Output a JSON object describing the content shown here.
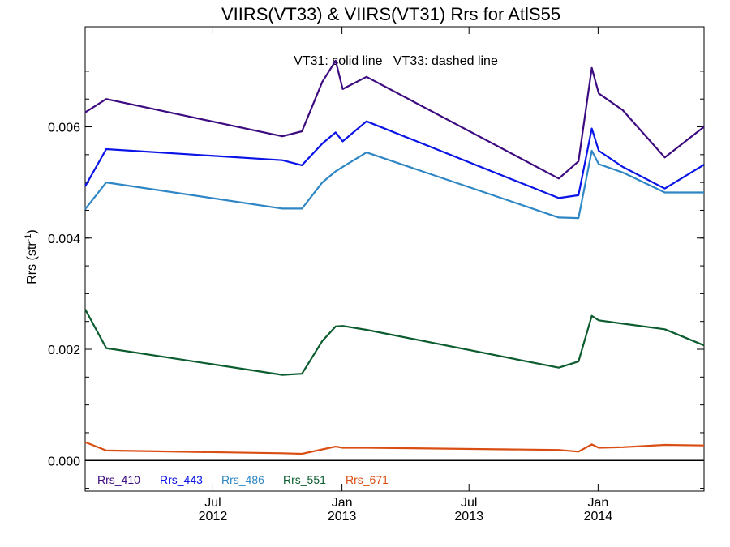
{
  "chart_data": {
    "type": "line",
    "title": "VIIRS(VT33) & VIIRS(VT31)  Rrs for AtlS55",
    "annotation": "VT31: solid line   VT33: dashed line",
    "ylabel": "Rrs (str",
    "ylabel_sup": "-1",
    "ylabel_close": ")",
    "xlabel": "",
    "xlim": [
      "2012-01-01",
      "2014-06-01"
    ],
    "ylim": [
      -0.00055,
      0.0078
    ],
    "y_ticks": [
      0.0,
      0.002,
      0.004,
      0.006
    ],
    "y_tick_labels": [
      "0.000",
      "0.002",
      "0.004",
      "0.006"
    ],
    "x_ticks": [
      {
        "date": "2012-07-01",
        "line1": "Jul",
        "line2": "2012"
      },
      {
        "date": "2013-01-01",
        "line1": "Jan",
        "line2": "2013"
      },
      {
        "date": "2013-07-01",
        "line1": "Jul",
        "line2": "2013"
      },
      {
        "date": "2014-01-01",
        "line1": "Jan",
        "line2": "2014"
      }
    ],
    "x": [
      "2012-01-01",
      "2012-01-31",
      "2012-10-08",
      "2012-11-05",
      "2012-12-04",
      "2012-12-23",
      "2013-01-02",
      "2013-02-05",
      "2013-11-06",
      "2013-12-04",
      "2013-12-23",
      "2014-01-02",
      "2014-02-05",
      "2014-04-06",
      "2014-06-01"
    ],
    "series": [
      {
        "name": "Rrs_410",
        "color": "#3d0b80",
        "values": [
          0.00626,
          0.0065,
          0.00583,
          0.00592,
          0.00681,
          0.00719,
          0.00668,
          0.0069,
          0.00507,
          0.00538,
          0.00706,
          0.0066,
          0.0063,
          0.00545,
          0.006
        ]
      },
      {
        "name": "Rrs_443",
        "color": "#0a14e6",
        "values": [
          0.00493,
          0.0056,
          0.0054,
          0.00531,
          0.0057,
          0.0059,
          0.00574,
          0.0061,
          0.00472,
          0.00477,
          0.00597,
          0.00557,
          0.00528,
          0.00489,
          0.00532
        ]
      },
      {
        "name": "Rrs_486",
        "color": "#2f86c4",
        "values": [
          0.00452,
          0.005,
          0.00453,
          0.00453,
          0.005,
          0.0052,
          0.00528,
          0.00554,
          0.00437,
          0.00436,
          0.00557,
          0.00533,
          0.00518,
          0.00482,
          0.00482
        ]
      },
      {
        "name": "Rrs_551",
        "color": "#0b5c2e",
        "values": [
          0.00272,
          0.00202,
          0.00154,
          0.00156,
          0.00215,
          0.00241,
          0.00242,
          0.00235,
          0.00167,
          0.00178,
          0.0026,
          0.00252,
          0.00246,
          0.00236,
          0.00207
        ]
      },
      {
        "name": "Rrs_671",
        "color": "#d94e12",
        "values": [
          0.00033,
          0.00018,
          0.00013,
          0.00012,
          0.0002,
          0.00025,
          0.00023,
          0.00023,
          0.00019,
          0.00016,
          0.00029,
          0.00023,
          0.00024,
          0.00028,
          0.00027
        ]
      }
    ],
    "grid": false,
    "legend_position": "bottom-left"
  }
}
